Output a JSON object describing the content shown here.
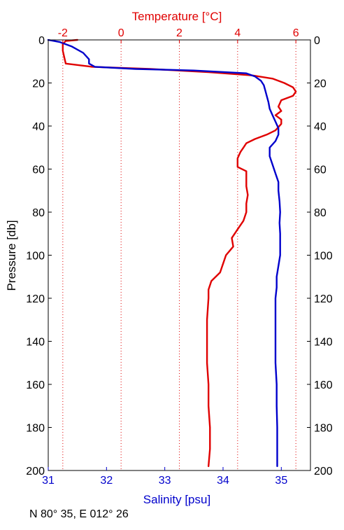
{
  "chart_data": {
    "type": "line",
    "x_top_label": "Temperature [°C]",
    "x_bottom_label": "Salinity [psu]",
    "y_label": "Pressure [db]",
    "y_range": [
      0,
      200
    ],
    "y_reversed": true,
    "y_ticks": [
      0,
      20,
      40,
      60,
      80,
      100,
      120,
      140,
      160,
      180,
      200
    ],
    "temperature_range": [
      -2.5,
      6.5
    ],
    "temperature_ticks": [
      -2,
      0,
      2,
      4,
      6
    ],
    "salinity_range": [
      31,
      35.5
    ],
    "salinity_ticks": [
      31,
      32,
      33,
      34,
      35
    ],
    "grid": "vertical dotted at temperature ticks",
    "colors": {
      "temperature": "#e00000",
      "salinity": "#0000cc",
      "axes": "#000000"
    },
    "series": [
      {
        "axis": "temperature",
        "points": [
          [
            -1.5,
            0
          ],
          [
            -1.9,
            0.5
          ],
          [
            -2.0,
            2
          ],
          [
            -2.0,
            5
          ],
          [
            -1.95,
            8
          ],
          [
            -1.9,
            11
          ],
          [
            -1.0,
            12.5
          ],
          [
            1.0,
            13.5
          ],
          [
            3.0,
            15
          ],
          [
            4.5,
            16.5
          ],
          [
            5.2,
            18
          ],
          [
            5.6,
            20
          ],
          [
            5.9,
            22
          ],
          [
            6.0,
            24
          ],
          [
            5.9,
            26
          ],
          [
            5.5,
            28
          ],
          [
            5.4,
            31
          ],
          [
            5.5,
            33
          ],
          [
            5.3,
            35
          ],
          [
            5.5,
            37
          ],
          [
            5.5,
            39
          ],
          [
            5.3,
            42
          ],
          [
            5.0,
            44
          ],
          [
            4.6,
            46
          ],
          [
            4.3,
            48
          ],
          [
            4.2,
            50
          ],
          [
            4.1,
            52
          ],
          [
            4.0,
            55
          ],
          [
            4.0,
            57
          ],
          [
            4.0,
            59
          ],
          [
            4.3,
            61
          ],
          [
            4.3,
            64
          ],
          [
            4.3,
            68
          ],
          [
            4.35,
            72
          ],
          [
            4.3,
            76
          ],
          [
            4.3,
            80
          ],
          [
            4.2,
            84
          ],
          [
            4.0,
            88
          ],
          [
            3.8,
            92
          ],
          [
            3.85,
            96
          ],
          [
            3.6,
            100
          ],
          [
            3.5,
            104
          ],
          [
            3.4,
            108
          ],
          [
            3.1,
            112
          ],
          [
            3.0,
            116
          ],
          [
            3.0,
            120
          ],
          [
            2.95,
            130
          ],
          [
            2.95,
            140
          ],
          [
            2.95,
            150
          ],
          [
            3.0,
            160
          ],
          [
            3.0,
            170
          ],
          [
            3.05,
            180
          ],
          [
            3.05,
            190
          ],
          [
            3.0,
            198
          ]
        ]
      },
      {
        "axis": "salinity",
        "points": [
          [
            31.0,
            0
          ],
          [
            31.2,
            1
          ],
          [
            31.4,
            3
          ],
          [
            31.6,
            6
          ],
          [
            31.7,
            9
          ],
          [
            31.7,
            11
          ],
          [
            31.8,
            12.5
          ],
          [
            32.5,
            13.5
          ],
          [
            33.5,
            14.2
          ],
          [
            34.4,
            15.5
          ],
          [
            34.55,
            17
          ],
          [
            34.65,
            19
          ],
          [
            34.7,
            21
          ],
          [
            34.72,
            23
          ],
          [
            34.75,
            26
          ],
          [
            34.78,
            29
          ],
          [
            34.8,
            32
          ],
          [
            34.85,
            35
          ],
          [
            34.9,
            38
          ],
          [
            34.95,
            41
          ],
          [
            34.95,
            44
          ],
          [
            34.9,
            47
          ],
          [
            34.8,
            50
          ],
          [
            34.8,
            54
          ],
          [
            34.85,
            58
          ],
          [
            34.9,
            62
          ],
          [
            34.95,
            66
          ],
          [
            34.95,
            70
          ],
          [
            34.97,
            75
          ],
          [
            34.98,
            80
          ],
          [
            34.97,
            85
          ],
          [
            34.98,
            90
          ],
          [
            34.98,
            95
          ],
          [
            34.98,
            100
          ],
          [
            34.95,
            105
          ],
          [
            34.92,
            110
          ],
          [
            34.92,
            115
          ],
          [
            34.9,
            120
          ],
          [
            34.9,
            130
          ],
          [
            34.9,
            140
          ],
          [
            34.9,
            150
          ],
          [
            34.92,
            160
          ],
          [
            34.92,
            170
          ],
          [
            34.93,
            180
          ],
          [
            34.93,
            190
          ],
          [
            34.93,
            198
          ]
        ]
      }
    ]
  },
  "caption": "N 80° 35,  E 012° 26"
}
